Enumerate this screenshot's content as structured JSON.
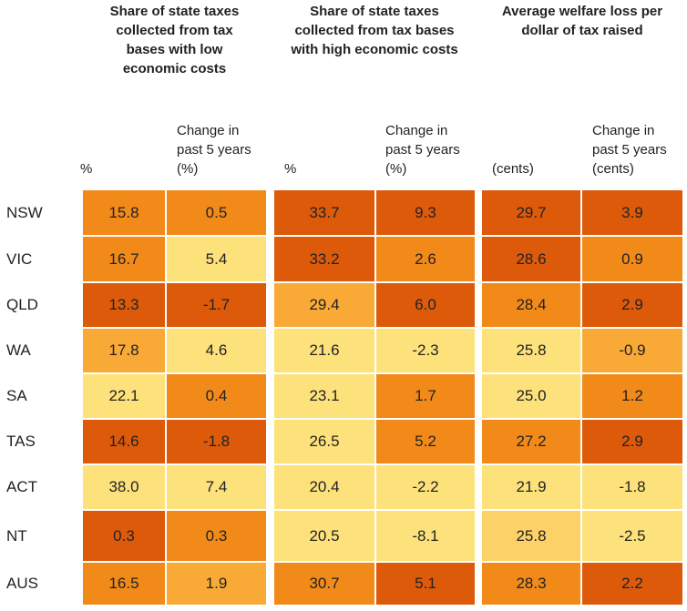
{
  "groups": [
    {
      "title": "Share of state taxes collected from tax bases with low economic costs",
      "columns": [
        "%",
        "Change in past 5 years (%)"
      ]
    },
    {
      "title": "Share of state taxes collected from tax bases with high economic costs",
      "columns": [
        "%",
        "Change in past 5 years (%)"
      ]
    },
    {
      "title": "Average welfare loss per dollar of tax raised",
      "columns": [
        "(cents)",
        "Change in past 5 years (cents)"
      ]
    }
  ],
  "rows": [
    {
      "label": "NSW",
      "cells": [
        "15.8",
        "0.5",
        "33.7",
        "9.3",
        "29.7",
        "3.9"
      ],
      "colors": [
        "#f28a1a",
        "#f28a1a",
        "#dd5a0b",
        "#dd5a0b",
        "#dd5a0b",
        "#dd5a0b"
      ]
    },
    {
      "label": "VIC",
      "cells": [
        "16.7",
        "5.4",
        "33.2",
        "2.6",
        "28.6",
        "0.9"
      ],
      "colors": [
        "#f28a1a",
        "#fde27c",
        "#dd5a0b",
        "#f28a1a",
        "#dd5a0b",
        "#f28a1a"
      ]
    },
    {
      "label": "QLD",
      "cells": [
        "13.3",
        "-1.7",
        "29.4",
        "6.0",
        "28.4",
        "2.9"
      ],
      "colors": [
        "#dd5a0b",
        "#dd5a0b",
        "#f9aa36",
        "#dd5a0b",
        "#f28a1a",
        "#dd5a0b"
      ]
    },
    {
      "label": "WA",
      "cells": [
        "17.8",
        "4.6",
        "21.6",
        "-2.3",
        "25.8",
        "-0.9"
      ],
      "colors": [
        "#f9aa36",
        "#fde27c",
        "#fde27c",
        "#fde27c",
        "#fde27c",
        "#f9aa36"
      ]
    },
    {
      "label": "SA",
      "cells": [
        "22.1",
        "0.4",
        "23.1",
        "1.7",
        "25.0",
        "1.2"
      ],
      "colors": [
        "#fde27c",
        "#f28a1a",
        "#fde27c",
        "#f28a1a",
        "#fde27c",
        "#f28a1a"
      ]
    },
    {
      "label": "TAS",
      "cells": [
        "14.6",
        "-1.8",
        "26.5",
        "5.2",
        "27.2",
        "2.9"
      ],
      "colors": [
        "#dd5a0b",
        "#dd5a0b",
        "#fde27c",
        "#f28a1a",
        "#f28a1a",
        "#dd5a0b"
      ]
    },
    {
      "label": "ACT",
      "cells": [
        "38.0",
        "7.4",
        "20.4",
        "-2.2",
        "21.9",
        "-1.8"
      ],
      "colors": [
        "#fde27c",
        "#fde27c",
        "#fde27c",
        "#fde27c",
        "#fde27c",
        "#fde27c"
      ]
    },
    {
      "label": "NT",
      "cells": [
        "0.3",
        "0.3",
        "20.5",
        "-8.1",
        "25.8",
        "-2.5"
      ],
      "colors": [
        "#dd5a0b",
        "#f28a1a",
        "#fde27c",
        "#fde27c",
        "#fcd168",
        "#fde27c"
      ]
    },
    {
      "label": "AUS",
      "cells": [
        "16.5",
        "1.9",
        "30.7",
        "5.1",
        "28.3",
        "2.2"
      ],
      "colors": [
        "#f28a1a",
        "#f9aa36",
        "#f28a1a",
        "#dd5a0b",
        "#f28a1a",
        "#dd5a0b"
      ]
    }
  ]
}
